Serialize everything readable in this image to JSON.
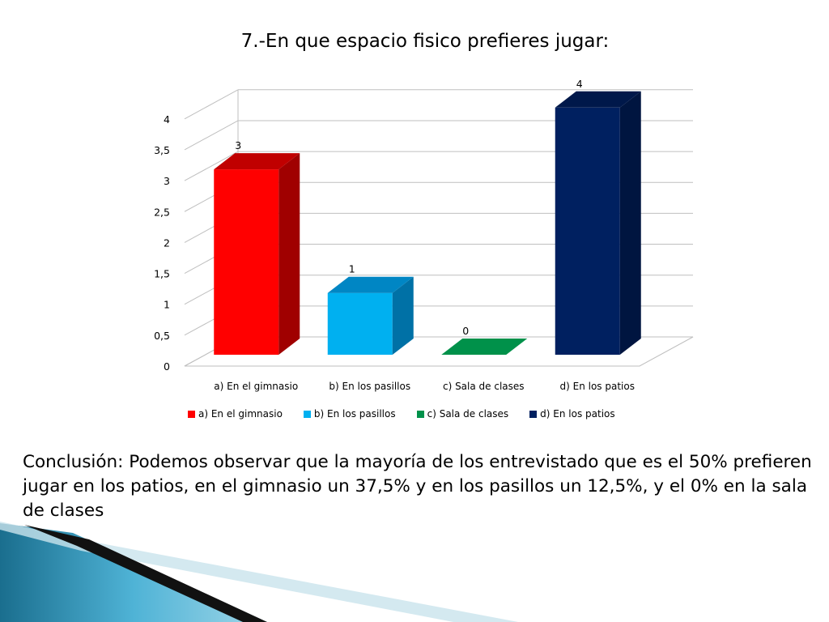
{
  "slide": {
    "conclusion": "Conclusión: Podemos observar que la mayoría de los entrevistado que es el 50% prefieren jugar en los patios, en el gimnasio un 37,5% y en los pasillos un 12,5%, y el 0% en la sala de clases"
  },
  "chart_data": {
    "type": "bar",
    "title": "7.-En que espacio fisico prefieres jugar:",
    "categories": [
      "a) En el gimnasio",
      "b) En los pasillos",
      "c) Sala de clases",
      "d) En los patios"
    ],
    "values": [
      3,
      1,
      0,
      4
    ],
    "data_labels": [
      "3",
      "1",
      "0",
      "4"
    ],
    "ylim": [
      0,
      4
    ],
    "yticks": [
      "0",
      "0,5",
      "1",
      "1,5",
      "2",
      "2,5",
      "3",
      "3,5",
      "4"
    ],
    "grid": true,
    "legend_position": "bottom",
    "legend": [
      "a) En el gimnasio",
      "b) En los pasillos",
      "c) Sala de clases",
      "d) En los patios"
    ],
    "colors": [
      "#ff0000",
      "#00b0f0",
      "#00914a",
      "#002060"
    ],
    "side_colors": [
      "#a00000",
      "#0071a6",
      "#005a2a",
      "#001540"
    ],
    "top_colors": [
      "#c00000",
      "#0086c4",
      "#007a3a",
      "#00184a"
    ],
    "xlabel": "",
    "ylabel": ""
  }
}
